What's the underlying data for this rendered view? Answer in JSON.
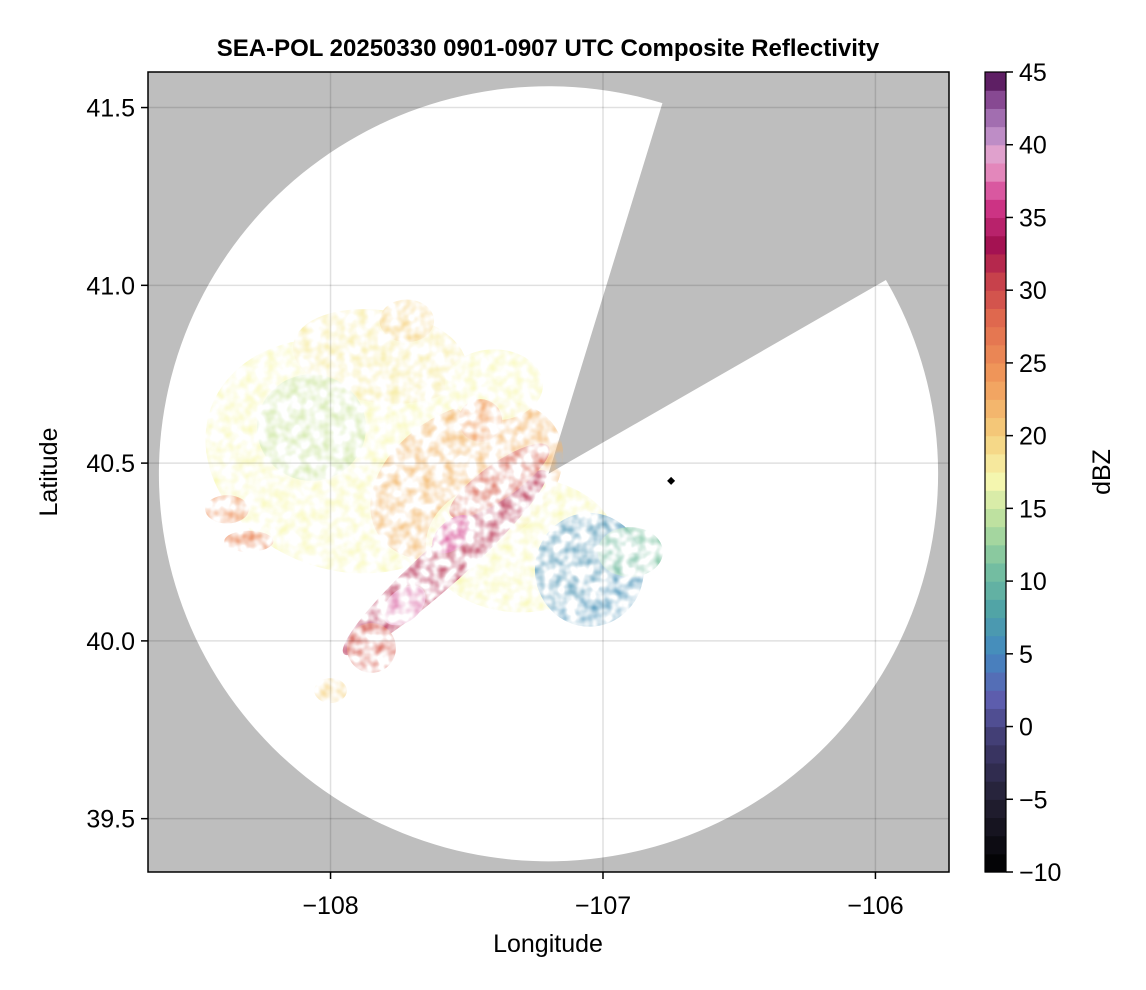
{
  "chart_data": {
    "type": "heatmap",
    "title": "SEA-POL 20250330 0901-0907 UTC Composite Reflectivity",
    "xlabel": "Longitude",
    "ylabel": "Latitude",
    "xlim": [
      -108.67,
      -105.73
    ],
    "ylim": [
      39.35,
      41.6
    ],
    "x_ticks": [
      -108,
      -107,
      -106
    ],
    "x_tick_labels": [
      "−108",
      "−107",
      "−106"
    ],
    "y_ticks": [
      39.5,
      40.0,
      40.5,
      41.0,
      41.5
    ],
    "y_tick_labels": [
      "39.5",
      "40.0",
      "40.5",
      "41.0",
      "41.5"
    ],
    "grid": true,
    "radar_site": {
      "lon": -107.2,
      "lat": 40.47
    },
    "radar_max_range_lat_deg": 1.09,
    "radar_max_range_lon_deg": 1.43,
    "blocked_sector": {
      "from_bearing_deg": 17,
      "to_bearing_deg": 60
    },
    "marker": {
      "lon": -106.75,
      "lat": 40.45,
      "symbol": "diamond"
    },
    "colorbar": {
      "label": "dBZ",
      "min": -10,
      "max": 45,
      "ticks": [
        -10,
        -5,
        0,
        5,
        10,
        15,
        20,
        25,
        30,
        35,
        40,
        45
      ],
      "tick_labels": [
        "−10",
        "−5",
        "0",
        "5",
        "10",
        "15",
        "20",
        "25",
        "30",
        "35",
        "40",
        "45"
      ],
      "colormap": "spectral-reversed-pink",
      "stops": [
        {
          "v": -10,
          "c": "#000000"
        },
        {
          "v": -5,
          "c": "#232033"
        },
        {
          "v": -1,
          "c": "#3f3a6e"
        },
        {
          "v": 2,
          "c": "#5e5fb0"
        },
        {
          "v": 5,
          "c": "#4488c0"
        },
        {
          "v": 8,
          "c": "#4fa3a6"
        },
        {
          "v": 11,
          "c": "#78c1a0"
        },
        {
          "v": 14,
          "c": "#b6de9e"
        },
        {
          "v": 17,
          "c": "#f7f7b0"
        },
        {
          "v": 20,
          "c": "#f5d07e"
        },
        {
          "v": 24,
          "c": "#f1995a"
        },
        {
          "v": 28,
          "c": "#e06a4e"
        },
        {
          "v": 31,
          "c": "#c33b4b"
        },
        {
          "v": 33,
          "c": "#a2104f"
        },
        {
          "v": 36,
          "c": "#d2388c"
        },
        {
          "v": 39,
          "c": "#eaa7cf"
        },
        {
          "v": 41,
          "c": "#b487c4"
        },
        {
          "v": 43,
          "c": "#8b4d97"
        },
        {
          "v": 45,
          "c": "#4a0a4d"
        }
      ]
    },
    "echo_regions": [
      {
        "name": "main-stratiform",
        "lon": -107.95,
        "lat": 40.52,
        "rlon": 0.52,
        "rlat": 0.32,
        "angle": -20,
        "dbz": 17
      },
      {
        "name": "northwest-area",
        "lon": -107.82,
        "lat": 40.8,
        "rlon": 0.32,
        "rlat": 0.13,
        "angle": -8,
        "dbz": 18
      },
      {
        "name": "west-light",
        "lon": -108.07,
        "lat": 40.6,
        "rlon": 0.2,
        "rlat": 0.15,
        "angle": 0,
        "dbz": 15
      },
      {
        "name": "central-moderate",
        "lon": -107.5,
        "lat": 40.45,
        "rlon": 0.38,
        "rlat": 0.2,
        "angle": 30,
        "dbz": 22
      },
      {
        "name": "southeast-band",
        "lon": -107.3,
        "lat": 40.27,
        "rlon": 0.35,
        "rlat": 0.19,
        "angle": 0,
        "dbz": 17
      },
      {
        "name": "southeast-weak",
        "lon": -107.05,
        "lat": 40.2,
        "rlon": 0.2,
        "rlat": 0.16,
        "angle": 0,
        "dbz": 6
      },
      {
        "name": "east-tail",
        "lon": -106.9,
        "lat": 40.25,
        "rlon": 0.12,
        "rlat": 0.07,
        "angle": 0,
        "dbz": 11
      },
      {
        "name": "north-tongue",
        "lon": -107.4,
        "lat": 40.72,
        "rlon": 0.18,
        "rlat": 0.1,
        "angle": 0,
        "dbz": 17
      },
      {
        "name": "main-band-core",
        "lon": -107.58,
        "lat": 40.22,
        "rlon": 0.5,
        "rlat": 0.06,
        "angle": 42,
        "dbz": 32
      },
      {
        "name": "north-band",
        "lon": -107.38,
        "lat": 40.45,
        "rlon": 0.22,
        "rlat": 0.05,
        "angle": 35,
        "dbz": 29
      },
      {
        "name": "intense-cell-1",
        "lon": -107.73,
        "lat": 40.1,
        "rlon": 0.09,
        "rlat": 0.045,
        "angle": 40,
        "dbz": 38
      },
      {
        "name": "intense-cell-2",
        "lon": -107.55,
        "lat": 40.3,
        "rlon": 0.09,
        "rlat": 0.04,
        "angle": 40,
        "dbz": 36
      },
      {
        "name": "southwest-cell",
        "lon": -107.85,
        "lat": 39.98,
        "rlon": 0.09,
        "rlat": 0.07,
        "angle": 0,
        "dbz": 29
      },
      {
        "name": "far-west-cell",
        "lon": -108.3,
        "lat": 40.28,
        "rlon": 0.09,
        "rlat": 0.03,
        "angle": 0,
        "dbz": 26
      },
      {
        "name": "west-edge-cell",
        "lon": -108.38,
        "lat": 40.37,
        "rlon": 0.08,
        "rlat": 0.04,
        "angle": 0,
        "dbz": 25
      },
      {
        "name": "south-trail",
        "lon": -108.0,
        "lat": 39.86,
        "rlon": 0.06,
        "rlat": 0.035,
        "angle": 0,
        "dbz": 20
      },
      {
        "name": "north-cells",
        "lon": -107.72,
        "lat": 40.9,
        "rlon": 0.1,
        "rlat": 0.06,
        "angle": 0,
        "dbz": 20
      },
      {
        "name": "central-cell",
        "lon": -107.45,
        "lat": 40.62,
        "rlon": 0.08,
        "rlat": 0.06,
        "angle": 0,
        "dbz": 24
      }
    ]
  }
}
